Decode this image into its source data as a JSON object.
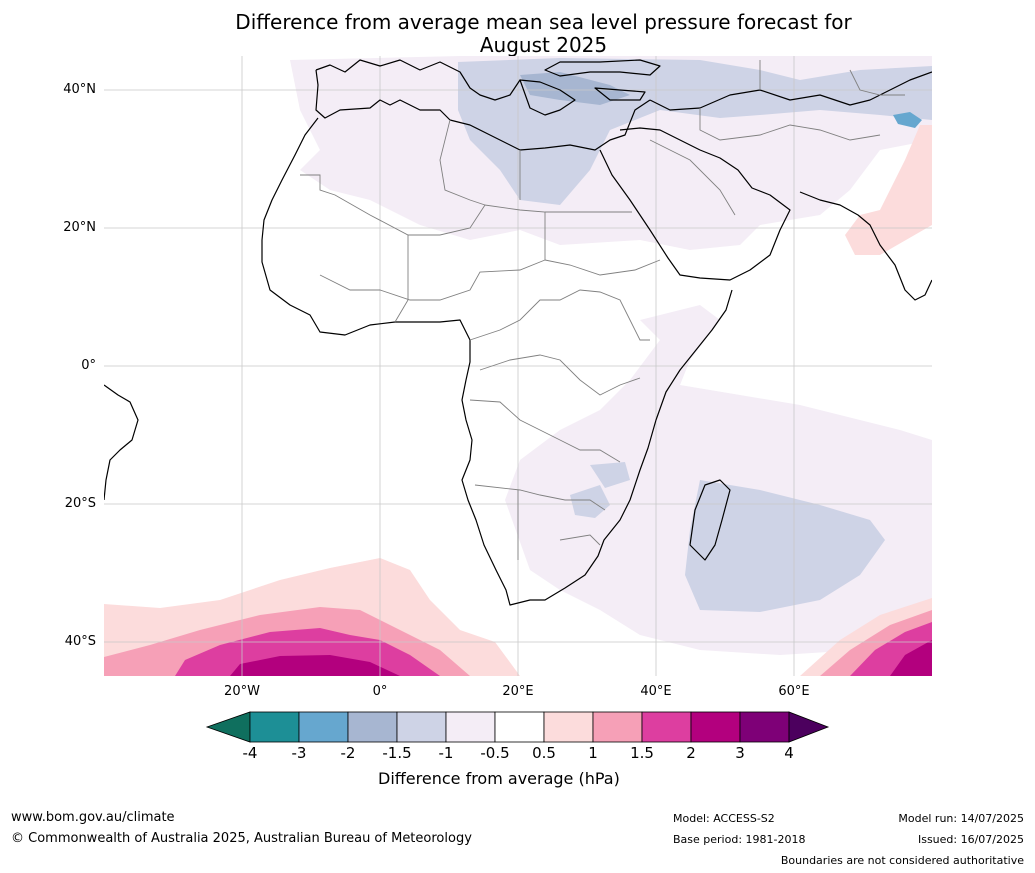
{
  "title_line1": "Difference from average mean sea level pressure forecast for",
  "title_line2": "August 2025",
  "map": {
    "lat_labels": [
      "40°N",
      "20°N",
      "0°",
      "20°S",
      "40°S"
    ],
    "lon_labels": [
      "20°W",
      "0°",
      "20°E",
      "40°E",
      "60°E"
    ]
  },
  "colorbar": {
    "title": "Difference from average (hPa)",
    "ticks": [
      "-4",
      "-3",
      "-2",
      "-1.5",
      "-1",
      "-0.5",
      "0.5",
      "1",
      "1.5",
      "2",
      "3",
      "4"
    ],
    "colors": [
      "#0f6f5e",
      "#1d8f96",
      "#66a7cf",
      "#a7b6d1",
      "#ced3e6",
      "#f4edf6",
      "#ffffff",
      "#fcdcdc",
      "#f6a0b7",
      "#dd3ea0",
      "#b3007e",
      "#7e0077",
      "#4c005e"
    ]
  },
  "footer": {
    "site": "www.bom.gov.au/climate",
    "copyright": "© Commonwealth of Australia 2025, Australian Bureau of Meteorology",
    "model": "Model: ACCESS-S2",
    "base_period": "Base period: 1981-2018",
    "model_run": "Model run: 14/07/2025",
    "issued": "Issued: 16/07/2025",
    "disclaimer": "Boundaries are not considered authoritative"
  }
}
